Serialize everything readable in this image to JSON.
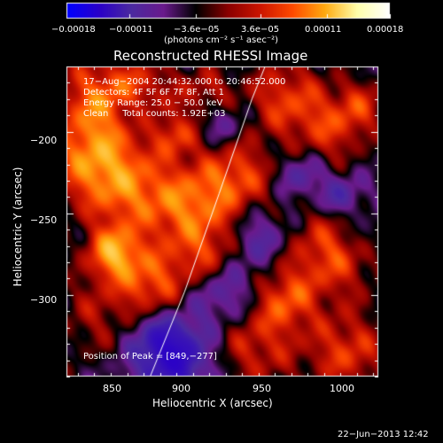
{
  "chart_data": {
    "type": "heatmap",
    "title": "Reconstructed RHESSI Image",
    "xlabel": "Heliocentric X (arcsec)",
    "ylabel": "Heliocentric Y (arcsec)",
    "xlim": [
      828,
      1018
    ],
    "ylim": [
      -350,
      -160
    ],
    "x_ticks": [
      850,
      900,
      950,
      1000
    ],
    "x_tick_labels": [
      "850",
      "900",
      "950",
      "1000"
    ],
    "y_ticks": [
      -200,
      -250,
      -300
    ],
    "y_tick_labels": [
      "−200",
      "−250",
      "−300"
    ],
    "colorbar": {
      "range": [
        -0.00018,
        0.00018
      ],
      "ticks": [
        -0.00018,
        -0.00011,
        -3.6e-05,
        3.6e-05,
        0.00011,
        0.00018
      ],
      "tick_labels": [
        "−0.00018",
        "−0.00011",
        "−3.6e−05",
        "3.6e−05",
        "0.00011",
        "0.00018"
      ],
      "unit_label": "(photons cm⁻² s⁻¹ asec⁻²)",
      "colors": [
        "#0000ff",
        "#2a00c8",
        "#4b2aa0",
        "#6a1a8c",
        "#000000",
        "#8a0000",
        "#cc1500",
        "#ff4a00",
        "#ffaa10",
        "#ffffaa",
        "#ffffff"
      ]
    },
    "annotations": [
      "17−Aug−2004 20:44:32.000 to 20:46:52.000",
      "Detectors: 4F 5F 6F 7F 8F, Att 1",
      "Energy Range: 25.0 − 50.0 keV",
      "Clean     Total counts: 1.92E+03"
    ],
    "peak": {
      "label": "Position of Peak = [849,−277]",
      "x": 849,
      "y": -277
    },
    "limb_curve": [
      [
        879,
        -350
      ],
      [
        900,
        -298
      ],
      [
        921,
        -238
      ],
      [
        941,
        -180
      ],
      [
        949,
        -160
      ]
    ],
    "timestamp": "22−Jun−2013 12:42"
  }
}
